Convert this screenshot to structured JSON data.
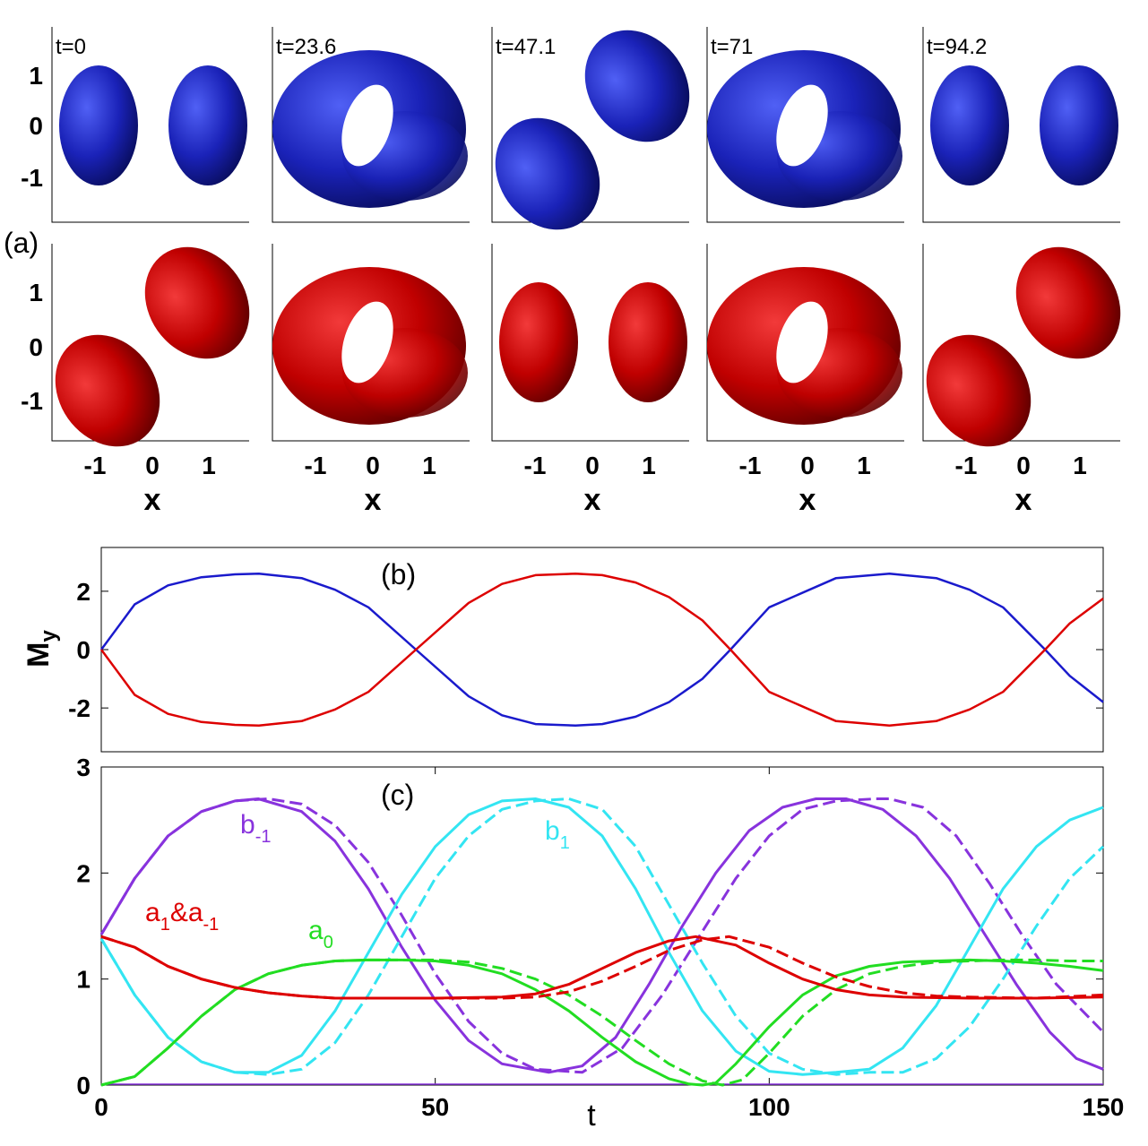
{
  "colors": {
    "blue": "#1a1acc",
    "red": "#dd0000",
    "purple": "#8833dd",
    "cyan": "#33e5f2",
    "green": "#22dd22",
    "blob_blue_light": "#4a5cf0",
    "blob_blue_dark": "#0a0f6a",
    "blob_red_light": "#f03030",
    "blob_red_dark": "#6a0000"
  },
  "panel_a": {
    "label": "(a)",
    "x_axis_label": "x",
    "x_ticks": [
      "-1",
      "0",
      "1"
    ],
    "y_ticks": [
      "1",
      "0",
      "-1"
    ],
    "snapshots": [
      {
        "t_label": "t=0",
        "top": "two-lobes-horizontal",
        "bottom": "two-lobes-diagonal"
      },
      {
        "t_label": "t=23.6",
        "top": "torus",
        "bottom": "torus"
      },
      {
        "t_label": "t=47.1",
        "top": "two-lobes-diagonal",
        "bottom": "two-lobes-horizontal"
      },
      {
        "t_label": "t=71",
        "top": "torus",
        "bottom": "torus"
      },
      {
        "t_label": "t=94.2",
        "top": "two-lobes-horizontal",
        "bottom": "two-lobes-diagonal"
      }
    ]
  },
  "chart_data": [
    {
      "type": "line",
      "panel_label": "(b)",
      "ylabel": "M",
      "ylabel_sub": "y",
      "xlim": [
        0,
        150
      ],
      "ylim": [
        -3.5,
        3.5
      ],
      "y_ticks": [
        2,
        0,
        -2
      ],
      "x": [
        0,
        5,
        10,
        15,
        20,
        23.6,
        30,
        35,
        40,
        47.1,
        55,
        60,
        65,
        71,
        75,
        80,
        85,
        90,
        94.2,
        100,
        110,
        118,
        125,
        130,
        135,
        141.3,
        145,
        150
      ],
      "series": [
        {
          "color": "blue",
          "values": [
            0,
            1.55,
            2.2,
            2.48,
            2.58,
            2.6,
            2.45,
            2.05,
            1.45,
            0,
            -1.6,
            -2.25,
            -2.55,
            -2.6,
            -2.55,
            -2.3,
            -1.8,
            -1.0,
            0,
            1.45,
            2.45,
            2.6,
            2.45,
            2.05,
            1.45,
            0,
            -0.9,
            -1.8
          ]
        },
        {
          "color": "red",
          "values": [
            0,
            -1.55,
            -2.2,
            -2.48,
            -2.58,
            -2.6,
            -2.45,
            -2.05,
            -1.45,
            0,
            1.6,
            2.25,
            2.55,
            2.6,
            2.55,
            2.3,
            1.8,
            1.0,
            0,
            -1.45,
            -2.45,
            -2.6,
            -2.45,
            -2.05,
            -1.45,
            0,
            0.9,
            1.75
          ]
        }
      ]
    },
    {
      "type": "line",
      "panel_label": "(c)",
      "xlabel": "t",
      "xlim": [
        0,
        150
      ],
      "ylim": [
        0,
        3
      ],
      "x_ticks": [
        0,
        50,
        100,
        150
      ],
      "y_ticks": [
        3,
        2,
        1,
        0
      ],
      "series": [
        {
          "label": "b",
          "label_sub": "-1",
          "color": "purple",
          "dash": false,
          "x": [
            0,
            5,
            10,
            15,
            20,
            23.5,
            30,
            35,
            40,
            45,
            50,
            55,
            60,
            67,
            72,
            77,
            82,
            87,
            92,
            97,
            102,
            107,
            111.5,
            117,
            122,
            127,
            132,
            137,
            142,
            146,
            150
          ],
          "values": [
            1.42,
            1.95,
            2.35,
            2.58,
            2.68,
            2.7,
            2.58,
            2.3,
            1.85,
            1.3,
            0.8,
            0.42,
            0.2,
            0.12,
            0.18,
            0.45,
            0.95,
            1.5,
            2.0,
            2.4,
            2.62,
            2.7,
            2.7,
            2.6,
            2.35,
            1.95,
            1.45,
            0.95,
            0.5,
            0.25,
            0.15
          ]
        },
        {
          "label": "",
          "color": "purple",
          "dash": true,
          "x": [
            0,
            5,
            10,
            15,
            20,
            25,
            30,
            35,
            40,
            45,
            50,
            55,
            60,
            65,
            72,
            78,
            84,
            90,
            95,
            100,
            105,
            110,
            116,
            118,
            123,
            128,
            133,
            138,
            143,
            150
          ],
          "values": [
            1.42,
            1.95,
            2.35,
            2.58,
            2.68,
            2.7,
            2.65,
            2.45,
            2.1,
            1.6,
            1.05,
            0.6,
            0.3,
            0.15,
            0.12,
            0.35,
            0.85,
            1.45,
            1.95,
            2.35,
            2.6,
            2.68,
            2.7,
            2.7,
            2.62,
            2.35,
            1.9,
            1.4,
            0.95,
            0.5
          ]
        },
        {
          "label": "b",
          "label_sub": "1",
          "color": "cyan",
          "dash": false,
          "x": [
            0,
            5,
            10,
            15,
            20,
            25,
            30,
            35,
            40,
            45,
            50,
            55,
            60,
            65,
            70,
            75,
            80,
            85,
            90,
            95,
            100,
            105,
            110,
            115,
            120,
            125,
            130,
            135,
            140,
            145,
            150
          ],
          "values": [
            1.38,
            0.85,
            0.45,
            0.22,
            0.12,
            0.12,
            0.28,
            0.7,
            1.25,
            1.8,
            2.25,
            2.55,
            2.68,
            2.7,
            2.62,
            2.35,
            1.85,
            1.25,
            0.7,
            0.32,
            0.13,
            0.1,
            0.12,
            0.15,
            0.35,
            0.75,
            1.3,
            1.85,
            2.25,
            2.5,
            2.62
          ]
        },
        {
          "label": "",
          "color": "cyan",
          "dash": true,
          "x": [
            0,
            5,
            10,
            15,
            20,
            25,
            30,
            35,
            40,
            45,
            50,
            55,
            60,
            65,
            70,
            75,
            80,
            85,
            90,
            95,
            100,
            105,
            110,
            115,
            120,
            125,
            130,
            135,
            140,
            145,
            150
          ],
          "values": [
            1.38,
            0.85,
            0.45,
            0.22,
            0.12,
            0.1,
            0.15,
            0.4,
            0.85,
            1.4,
            1.95,
            2.35,
            2.6,
            2.68,
            2.7,
            2.6,
            2.25,
            1.7,
            1.15,
            0.65,
            0.3,
            0.15,
            0.1,
            0.12,
            0.12,
            0.25,
            0.55,
            1.0,
            1.5,
            1.95,
            2.25
          ]
        },
        {
          "label": "a",
          "label_sub": "0",
          "color": "green",
          "dash": false,
          "x": [
            0,
            5,
            10,
            15,
            20,
            25,
            30,
            35,
            40,
            45,
            50,
            55,
            60,
            65,
            70,
            75,
            80,
            85,
            88,
            90,
            92,
            95,
            100,
            105,
            110,
            115,
            120,
            125,
            130,
            135,
            140,
            145,
            150
          ],
          "values": [
            0,
            0.08,
            0.35,
            0.65,
            0.9,
            1.05,
            1.13,
            1.17,
            1.18,
            1.18,
            1.17,
            1.13,
            1.05,
            0.9,
            0.7,
            0.45,
            0.22,
            0.06,
            0.01,
            0,
            0.02,
            0.2,
            0.55,
            0.85,
            1.03,
            1.12,
            1.16,
            1.17,
            1.18,
            1.17,
            1.15,
            1.12,
            1.08
          ]
        },
        {
          "label": "",
          "color": "green",
          "dash": true,
          "x": [
            0,
            5,
            10,
            15,
            20,
            25,
            30,
            35,
            40,
            45,
            50,
            55,
            60,
            65,
            70,
            75,
            80,
            85,
            90,
            93,
            96,
            100,
            105,
            110,
            115,
            120,
            125,
            130,
            135,
            140,
            145,
            150
          ],
          "values": [
            0,
            0.08,
            0.35,
            0.65,
            0.9,
            1.05,
            1.13,
            1.17,
            1.18,
            1.18,
            1.18,
            1.16,
            1.1,
            1.0,
            0.85,
            0.65,
            0.42,
            0.2,
            0.04,
            0,
            0.05,
            0.3,
            0.65,
            0.9,
            1.05,
            1.12,
            1.16,
            1.17,
            1.18,
            1.18,
            1.17,
            1.17
          ]
        },
        {
          "label": "a",
          "label_sub": "1",
          "label_mid": "&a",
          "label_sub2": "-1",
          "color": "red",
          "dash": false,
          "x": [
            0,
            5,
            10,
            15,
            20,
            25,
            30,
            35,
            40,
            50,
            60,
            65,
            70,
            75,
            80,
            85,
            89,
            95,
            100,
            105,
            110,
            115,
            120,
            130,
            140,
            150
          ],
          "values": [
            1.4,
            1.3,
            1.12,
            1.0,
            0.92,
            0.87,
            0.84,
            0.82,
            0.82,
            0.82,
            0.83,
            0.86,
            0.95,
            1.1,
            1.25,
            1.36,
            1.4,
            1.32,
            1.15,
            1.0,
            0.9,
            0.85,
            0.83,
            0.82,
            0.82,
            0.83
          ]
        },
        {
          "label": "",
          "color": "red",
          "dash": true,
          "x": [
            0,
            5,
            10,
            15,
            20,
            25,
            30,
            35,
            40,
            50,
            60,
            65,
            70,
            75,
            80,
            85,
            90,
            94,
            100,
            105,
            110,
            115,
            120,
            125,
            130,
            140,
            150
          ],
          "values": [
            1.4,
            1.3,
            1.12,
            1.0,
            0.92,
            0.87,
            0.84,
            0.82,
            0.82,
            0.82,
            0.82,
            0.83,
            0.88,
            0.98,
            1.12,
            1.27,
            1.37,
            1.4,
            1.3,
            1.15,
            1.02,
            0.93,
            0.87,
            0.84,
            0.83,
            0.82,
            0.85
          ]
        }
      ]
    }
  ]
}
